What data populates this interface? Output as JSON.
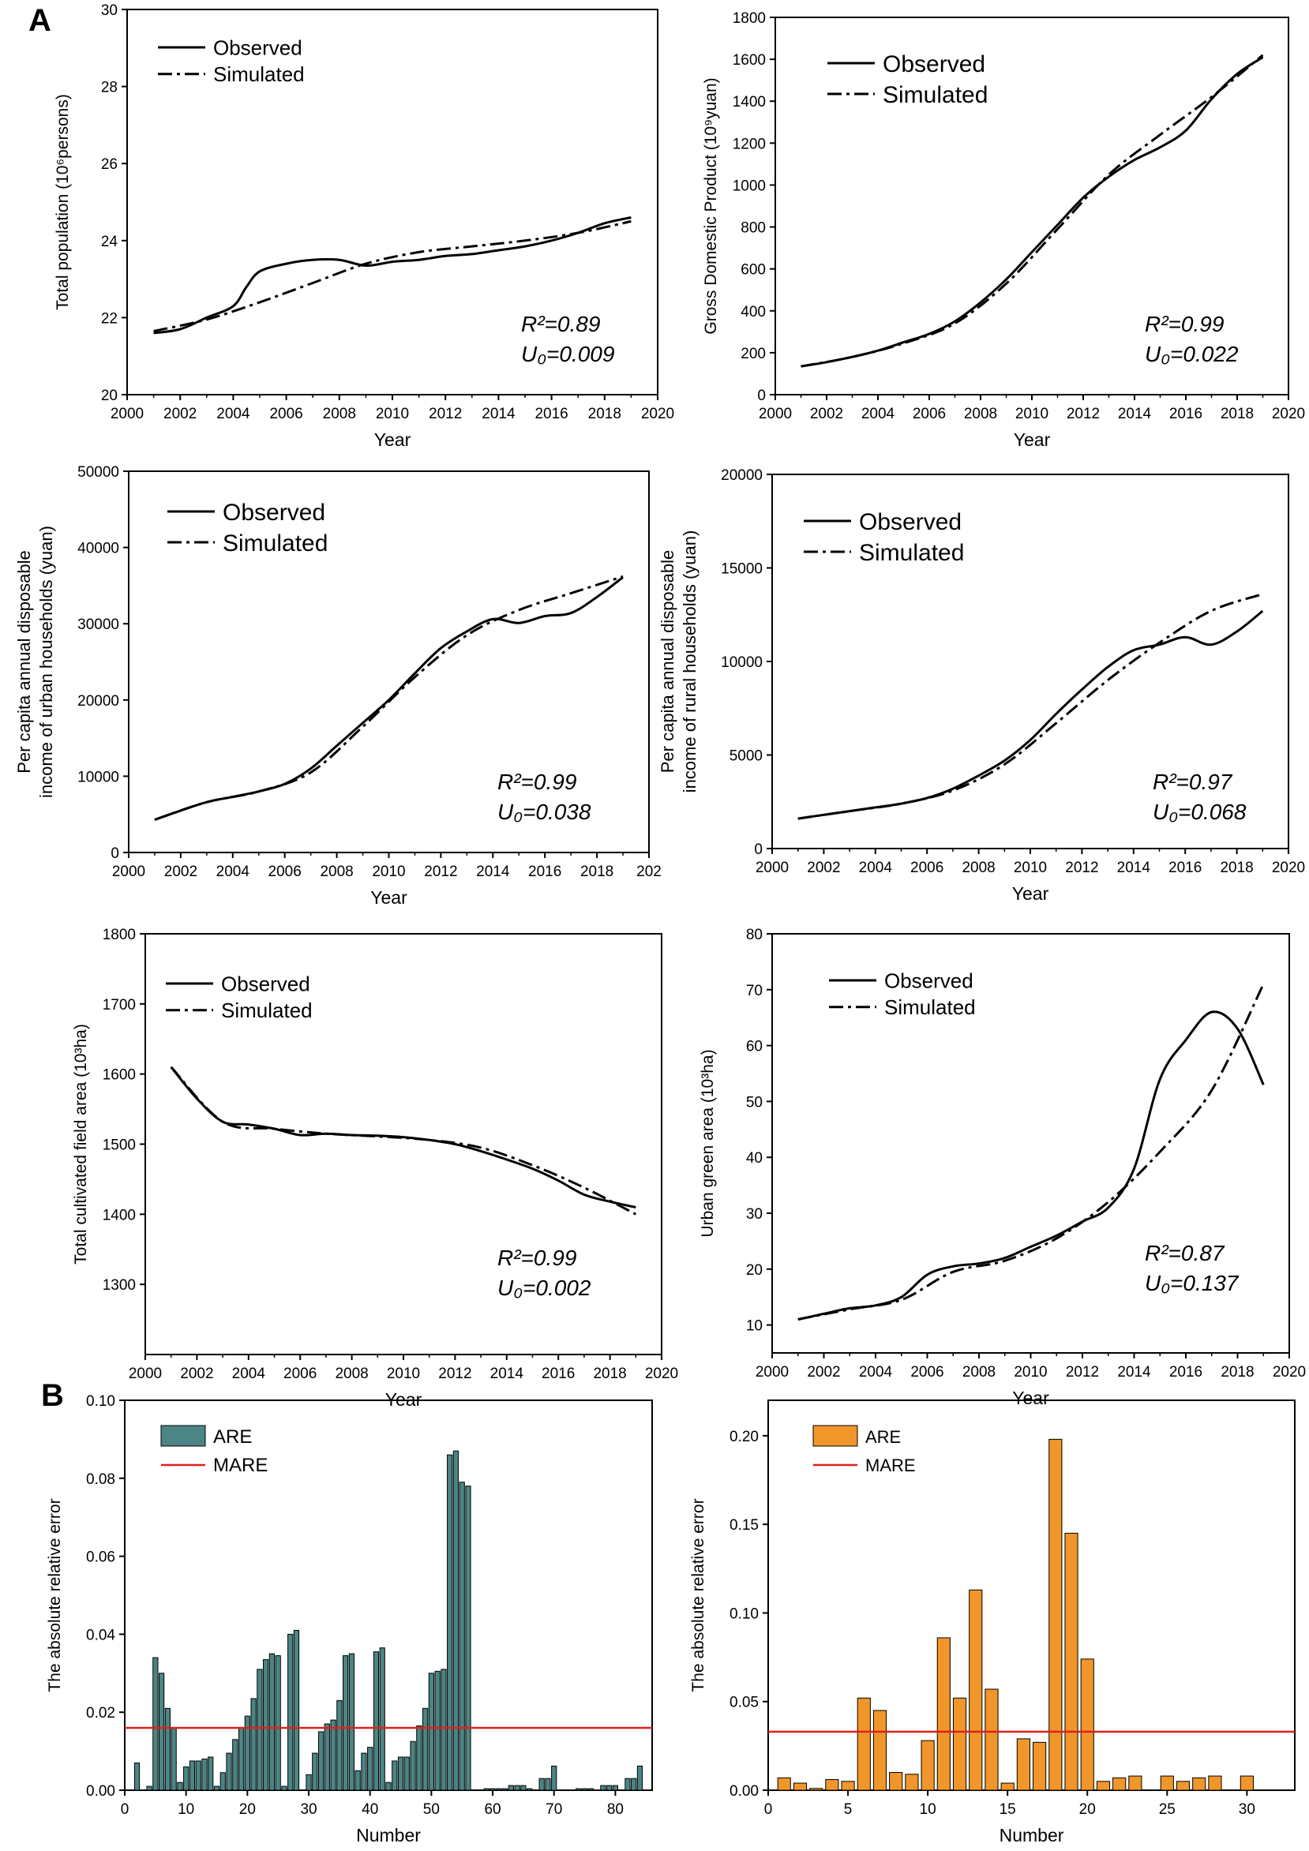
{
  "panel_labels": [
    "A",
    "B"
  ],
  "chart_data": [
    {
      "id": "pop",
      "type": "line",
      "ylabel": "Total population (10⁶persons)",
      "xlabel": "Year",
      "xlim": [
        2000,
        2020
      ],
      "ylim": [
        20,
        30
      ],
      "xticks": [
        "2000",
        "2002",
        "2004",
        "2006",
        "2008",
        "2010",
        "2012",
        "2014",
        "2016",
        "2018",
        "2020"
      ],
      "yticks": [
        "20",
        "22",
        "24",
        "26",
        "28",
        "30"
      ],
      "legend": "top-left",
      "series": [
        {
          "name": "Observed",
          "style": "solid",
          "x": [
            2001,
            2002,
            2003,
            2004,
            2004.5,
            2005,
            2006,
            2007,
            2008,
            2009,
            2010,
            2011,
            2012,
            2013,
            2014,
            2015,
            2016,
            2017,
            2018,
            2019
          ],
          "y": [
            21.6,
            21.7,
            22.0,
            22.3,
            22.8,
            23.2,
            23.4,
            23.5,
            23.5,
            23.35,
            23.45,
            23.5,
            23.6,
            23.65,
            23.75,
            23.85,
            24.0,
            24.2,
            24.45,
            24.6
          ]
        },
        {
          "name": "Simulated",
          "style": "dashdot",
          "x": [
            2001,
            2003,
            2005,
            2007,
            2009,
            2011,
            2013,
            2015,
            2017,
            2019
          ],
          "y": [
            21.65,
            21.95,
            22.4,
            22.9,
            23.4,
            23.7,
            23.85,
            24.0,
            24.2,
            24.5
          ]
        }
      ],
      "stats": {
        "r2": "R²=0.89",
        "u0": "U₀=0.009"
      }
    },
    {
      "id": "gdp",
      "type": "line",
      "ylabel": "Gross Domestic Product (10⁹yuan)",
      "xlabel": "Year",
      "xlim": [
        2000,
        2020
      ],
      "ylim": [
        0,
        1800
      ],
      "xticks": [
        "2000",
        "2002",
        "2004",
        "2006",
        "2008",
        "2010",
        "2012",
        "2014",
        "2016",
        "2018",
        "2020"
      ],
      "yticks": [
        "0",
        "200",
        "400",
        "600",
        "800",
        "1000",
        "1200",
        "1400",
        "1600",
        "1800"
      ],
      "legend": "top-left",
      "series": [
        {
          "name": "Observed",
          "style": "solid",
          "x": [
            2001,
            2002,
            2003,
            2004,
            2005,
            2006,
            2007,
            2008,
            2009,
            2010,
            2011,
            2012,
            2013,
            2014,
            2015,
            2016,
            2017,
            2018,
            2019
          ],
          "y": [
            135,
            155,
            180,
            210,
            250,
            290,
            350,
            440,
            550,
            680,
            810,
            940,
            1040,
            1120,
            1180,
            1260,
            1410,
            1530,
            1610
          ]
        },
        {
          "name": "Simulated",
          "style": "dashdot",
          "x": [
            2001,
            2003,
            2005,
            2007,
            2009,
            2011,
            2013,
            2015,
            2017,
            2019
          ],
          "y": [
            135,
            180,
            245,
            340,
            530,
            790,
            1050,
            1240,
            1420,
            1620
          ]
        }
      ],
      "stats": {
        "r2": "R²=0.99",
        "u0": "U₀=0.022"
      }
    },
    {
      "id": "urban",
      "type": "line",
      "ylabel": "Per capita annual disposable income of urban households (yuan)",
      "ylabel_lines": [
        "Per capita annual disposable",
        "income of urban households (yuan)"
      ],
      "xlabel": "Year",
      "xlim": [
        2000,
        2020
      ],
      "ylim": [
        0,
        50000
      ],
      "xticks": [
        "2000",
        "2002",
        "2004",
        "2006",
        "2008",
        "2010",
        "2012",
        "2014",
        "2016",
        "2018",
        "202"
      ],
      "yticks": [
        "0",
        "10000",
        "20000",
        "30000",
        "40000",
        "50000"
      ],
      "legend": "top-left",
      "series": [
        {
          "name": "Observed",
          "style": "solid",
          "x": [
            2001,
            2002,
            2003,
            2004,
            2005,
            2006,
            2007,
            2008,
            2009,
            2010,
            2011,
            2012,
            2013,
            2014,
            2015,
            2016,
            2017,
            2018,
            2019
          ],
          "y": [
            4300,
            5500,
            6600,
            7300,
            8000,
            9000,
            11000,
            14000,
            17000,
            20000,
            23500,
            26800,
            29000,
            30600,
            30100,
            31000,
            31400,
            33500,
            36100
          ]
        },
        {
          "name": "Simulated",
          "style": "dashdot",
          "x": [
            2001,
            2003,
            2005,
            2007,
            2009,
            2011,
            2013,
            2015,
            2017,
            2019
          ],
          "y": [
            4300,
            6600,
            8000,
            10500,
            16500,
            23000,
            28500,
            31800,
            34000,
            36200
          ]
        }
      ],
      "stats": {
        "r2": "R²=0.99",
        "u0": "U₀=0.038"
      }
    },
    {
      "id": "rural",
      "type": "line",
      "ylabel": "Per capita annual disposable income of rural households (yuan)",
      "ylabel_lines": [
        "Per capita annual disposable",
        "income of rural households (yuan)"
      ],
      "xlabel": "Year",
      "xlim": [
        2000,
        2020
      ],
      "ylim": [
        0,
        20000
      ],
      "xticks": [
        "2000",
        "2002",
        "2004",
        "2006",
        "2008",
        "2010",
        "2012",
        "2014",
        "2016",
        "2018",
        "2020"
      ],
      "yticks": [
        "0",
        "5000",
        "10000",
        "15000",
        "20000"
      ],
      "legend": "top-left",
      "series": [
        {
          "name": "Observed",
          "style": "solid",
          "x": [
            2001,
            2002,
            2003,
            2004,
            2005,
            2006,
            2007,
            2008,
            2009,
            2010,
            2011,
            2012,
            2013,
            2014,
            2015,
            2016,
            2017,
            2018,
            2019
          ],
          "y": [
            1600,
            1800,
            2000,
            2200,
            2400,
            2700,
            3200,
            3900,
            4700,
            5800,
            7200,
            8500,
            9700,
            10600,
            10900,
            11300,
            10900,
            11600,
            12700
          ]
        },
        {
          "name": "Simulated",
          "style": "dashdot",
          "x": [
            2001,
            2003,
            2005,
            2007,
            2009,
            2011,
            2013,
            2015,
            2017,
            2019
          ],
          "y": [
            1600,
            2000,
            2400,
            3100,
            4500,
            6700,
            9000,
            11000,
            12700,
            13600
          ]
        }
      ],
      "stats": {
        "r2": "R²=0.97",
        "u0": "U₀=0.068"
      }
    },
    {
      "id": "cultivated",
      "type": "line",
      "ylabel": "Total cultivated field area (10³ha)",
      "xlabel": "Year",
      "xlim": [
        2000,
        2020
      ],
      "ylim": [
        1200,
        1800
      ],
      "xticks": [
        "2000",
        "2002",
        "2004",
        "2006",
        "2008",
        "2010",
        "2012",
        "2014",
        "2016",
        "2018",
        "2020"
      ],
      "yticks": [
        "1300",
        "1400",
        "1500",
        "1600",
        "1700",
        "1800"
      ],
      "legend": "top-left",
      "series": [
        {
          "name": "Observed",
          "style": "solid",
          "x": [
            2001,
            2002,
            2003,
            2004,
            2005,
            2006,
            2007,
            2008,
            2009,
            2010,
            2011,
            2012,
            2013,
            2014,
            2015,
            2016,
            2017,
            2018,
            2019
          ],
          "y": [
            1610,
            1565,
            1532,
            1528,
            1522,
            1513,
            1515,
            1513,
            1512,
            1510,
            1506,
            1500,
            1490,
            1478,
            1465,
            1448,
            1428,
            1418,
            1410
          ]
        },
        {
          "name": "Simulated",
          "style": "dashdot",
          "x": [
            2001,
            2003,
            2005,
            2007,
            2009,
            2011,
            2013,
            2015,
            2017,
            2019
          ],
          "y": [
            1610,
            1532,
            1522,
            1515,
            1511,
            1506,
            1495,
            1470,
            1438,
            1400
          ]
        }
      ],
      "stats": {
        "r2": "R²=0.99",
        "u0": "U₀=0.002"
      }
    },
    {
      "id": "green",
      "type": "line",
      "ylabel": "Urban green area (10³ha)",
      "xlabel": "Year",
      "xlim": [
        2000,
        2020
      ],
      "ylim": [
        5,
        80
      ],
      "xticks": [
        "2000",
        "2002",
        "2004",
        "2006",
        "2008",
        "2010",
        "2012",
        "2014",
        "2016",
        "2018",
        "2020"
      ],
      "yticks": [
        "10",
        "20",
        "30",
        "40",
        "50",
        "60",
        "70",
        "80"
      ],
      "legend": "top-left",
      "series": [
        {
          "name": "Observed",
          "style": "solid",
          "x": [
            2001,
            2002,
            2003,
            2004,
            2005,
            2006,
            2007,
            2008,
            2009,
            2010,
            2011,
            2012,
            2013,
            2014,
            2015,
            2016,
            2017,
            2018,
            2019
          ],
          "y": [
            11,
            12,
            13,
            13.5,
            15,
            19,
            20.5,
            21,
            22,
            24,
            26,
            28.5,
            31,
            38,
            54,
            61,
            66,
            63,
            53
          ]
        },
        {
          "name": "Simulated",
          "style": "dashdot",
          "x": [
            2001,
            2003,
            2005,
            2007,
            2009,
            2011,
            2013,
            2015,
            2017,
            2019
          ],
          "y": [
            11,
            12.8,
            14.5,
            19.5,
            21.5,
            25.5,
            32,
            41,
            52,
            71
          ]
        }
      ],
      "stats": {
        "r2": "R²=0.87",
        "u0": "U₀=0.137"
      }
    },
    {
      "id": "are1",
      "type": "bar",
      "ylabel": "The absolute relative error",
      "xlabel": "Number",
      "xlim": [
        0,
        86
      ],
      "ylim": [
        0,
        0.1
      ],
      "xticks": [
        "0",
        "10",
        "20",
        "30",
        "40",
        "50",
        "60",
        "70",
        "80"
      ],
      "yticks": [
        "0.00",
        "0.02",
        "0.04",
        "0.06",
        "0.08",
        "0.10"
      ],
      "legend": "top-left",
      "legend_items": [
        "ARE",
        "MARE"
      ],
      "bar_color": "#4b8585",
      "mare_color": "#e0201a",
      "mare": 0.016,
      "x": [
        1,
        2,
        3,
        4,
        5,
        6,
        7,
        8,
        9,
        10,
        11,
        12,
        13,
        14,
        15,
        16,
        17,
        18,
        19,
        20,
        21,
        22,
        23,
        24,
        25,
        26,
        27,
        28,
        29,
        30,
        31,
        32,
        33,
        34,
        35,
        36,
        37,
        38,
        39,
        40,
        41,
        42,
        43,
        44,
        45,
        46,
        47,
        48,
        49,
        50,
        51,
        52,
        53,
        54,
        55,
        56,
        57,
        58,
        59,
        60,
        61,
        62,
        63,
        64,
        65,
        66,
        67,
        68,
        69,
        70,
        71,
        72,
        73,
        74,
        75,
        76,
        77,
        78,
        79,
        80,
        81,
        82,
        83,
        84,
        85
      ],
      "values": [
        0,
        0.007,
        0,
        0.001,
        0.034,
        0.03,
        0.021,
        0.016,
        0.002,
        0.006,
        0.0075,
        0.0075,
        0.008,
        0.0085,
        0.001,
        0.0045,
        0.0095,
        0.013,
        0.016,
        0.019,
        0.0235,
        0.031,
        0.0335,
        0.035,
        0.0345,
        0.001,
        0.04,
        0.041,
        0,
        0.004,
        0.0095,
        0.015,
        0.017,
        0.018,
        0.023,
        0.0345,
        0.035,
        0.005,
        0.0095,
        0.011,
        0.0355,
        0.0365,
        0.002,
        0.0075,
        0.0085,
        0.0085,
        0.0125,
        0.0165,
        0.021,
        0.03,
        0.0305,
        0.031,
        0.086,
        0.087,
        0.079,
        0.078,
        0,
        0,
        0.0004,
        0.0004,
        0.0004,
        0.0004,
        0.0012,
        0.0012,
        0.0012,
        0.0004,
        0,
        0.003,
        0.003,
        0.0062,
        0,
        0,
        0,
        0.0004,
        0.0004,
        0.0004,
        0,
        0.0012,
        0.0012,
        0.0012,
        0,
        0.003,
        0.003,
        0.0062,
        0
      ]
    },
    {
      "id": "are2",
      "type": "bar",
      "ylabel": "The absolute relative error",
      "xlabel": "Number",
      "xlim": [
        0,
        33
      ],
      "ylim": [
        0,
        0.22
      ],
      "xticks": [
        "0",
        "5",
        "10",
        "15",
        "20",
        "25",
        "30"
      ],
      "yticks": [
        "0.00",
        "0.05",
        "0.10",
        "0.15",
        "0.20"
      ],
      "legend": "top-left",
      "legend_items": [
        "ARE",
        "MARE"
      ],
      "bar_color": "#f0962a",
      "mare_color": "#e0201a",
      "mare": 0.033,
      "x": [
        1,
        2,
        3,
        4,
        5,
        6,
        7,
        8,
        9,
        10,
        11,
        12,
        13,
        14,
        15,
        16,
        17,
        18,
        19,
        20,
        21,
        22,
        23,
        24,
        25,
        26,
        27,
        28,
        29,
        30
      ],
      "values": [
        0.007,
        0.004,
        0.001,
        0.006,
        0.005,
        0.052,
        0.045,
        0.01,
        0.009,
        0.028,
        0.086,
        0.052,
        0.113,
        0.057,
        0.004,
        0.029,
        0.027,
        0.198,
        0.145,
        0.074,
        0.005,
        0.007,
        0.008,
        0,
        0.008,
        0.005,
        0.007,
        0.008,
        0,
        0.008
      ]
    }
  ]
}
